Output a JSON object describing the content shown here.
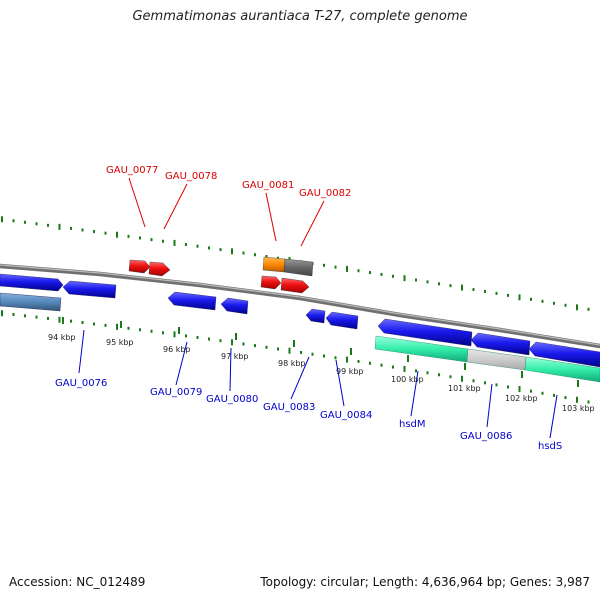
{
  "title": "Gemmatimonas aurantiaca T-27, complete genome",
  "footer": {
    "accession": "Accession: NC_012489",
    "summary": "Topology: circular; Length: 4,636,964 bp; Genes: 3,987"
  },
  "colors": {
    "background": "#ffffff",
    "backbone": "#808080",
    "tick": "#1a7a1a",
    "top_label": "#dd0000",
    "bottom_label": "#0000cc",
    "gene_red": "#ee1111",
    "gene_blue": "#1a1aee",
    "gene_orange": "#ff8800",
    "gene_gray": "#666666",
    "gene_steel": "#5588bb",
    "region_green": "#33eeaa",
    "region_lightgray": "#cccccc"
  },
  "scale": {
    "unit": "kbp",
    "labels": [
      "94 kbp",
      "95 kbp",
      "96 kbp",
      "97 kbp",
      "98 kbp",
      "99 kbp",
      "100 kbp",
      "101 kbp",
      "102 kbp",
      "103 kbp"
    ]
  },
  "genes_top": [
    {
      "label": "GAU_0077",
      "color": "gene_red"
    },
    {
      "label": "GAU_0078",
      "color": "gene_red"
    },
    {
      "label": "GAU_0081",
      "color": "gene_red"
    },
    {
      "label": "GAU_0082",
      "color": "gene_red"
    }
  ],
  "genes_bottom": [
    {
      "label": "GAU_0076"
    },
    {
      "label": "GAU_0079"
    },
    {
      "label": "GAU_0080"
    },
    {
      "label": "GAU_0083"
    },
    {
      "label": "GAU_0084"
    },
    {
      "label": "hsdM"
    },
    {
      "label": "GAU_0086"
    },
    {
      "label": "hsdS"
    }
  ]
}
